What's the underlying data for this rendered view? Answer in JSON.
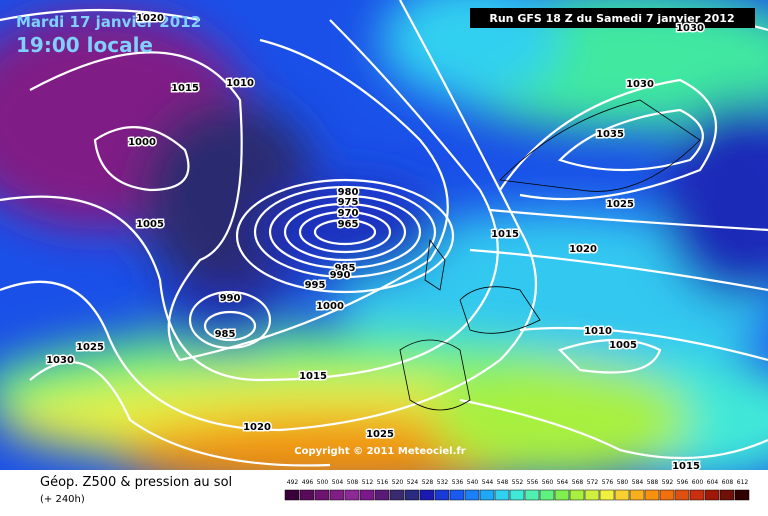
{
  "header": {
    "date": "Mardi 17 janvier 2012",
    "time": "19:00 locale",
    "run": "Run GFS 18 Z du Samedi 7 janvier 2012"
  },
  "copyright": "Copyright © 2011 Meteociel.fr",
  "footer": {
    "title": "Géop. Z500 & pression au sol",
    "lead": "(+ 240h)"
  },
  "isobars": [
    1020,
    1015,
    1010,
    1000,
    1005,
    980,
    975,
    970,
    965,
    985,
    990,
    995,
    1000,
    990,
    985,
    1025,
    1030,
    1015,
    1020,
    1025,
    1015,
    1020,
    1025,
    1030,
    1035,
    1010,
    1005,
    1015,
    1030
  ],
  "scale": {
    "values": [
      492,
      496,
      500,
      504,
      508,
      512,
      516,
      520,
      524,
      528,
      532,
      536,
      540,
      544,
      548,
      552,
      556,
      560,
      564,
      568,
      572,
      576,
      580,
      584,
      588,
      592,
      596,
      600,
      604,
      608,
      612
    ],
    "colors": [
      "#3a003a",
      "#5a0a5a",
      "#6e1470",
      "#801e86",
      "#8e2a98",
      "#7a1a8a",
      "#5a1a78",
      "#3a2a70",
      "#2a2a80",
      "#1a1ab0",
      "#1a3ad8",
      "#1a5af0",
      "#1a80f8",
      "#20a8f8",
      "#30d0f0",
      "#40e8d8",
      "#50f0b0",
      "#60f080",
      "#80f050",
      "#a8f040",
      "#d0f040",
      "#f0f040",
      "#f8d030",
      "#f8b020",
      "#f89010",
      "#f07010",
      "#e05010",
      "#c83010",
      "#a01808",
      "#701008",
      "#300000"
    ]
  }
}
